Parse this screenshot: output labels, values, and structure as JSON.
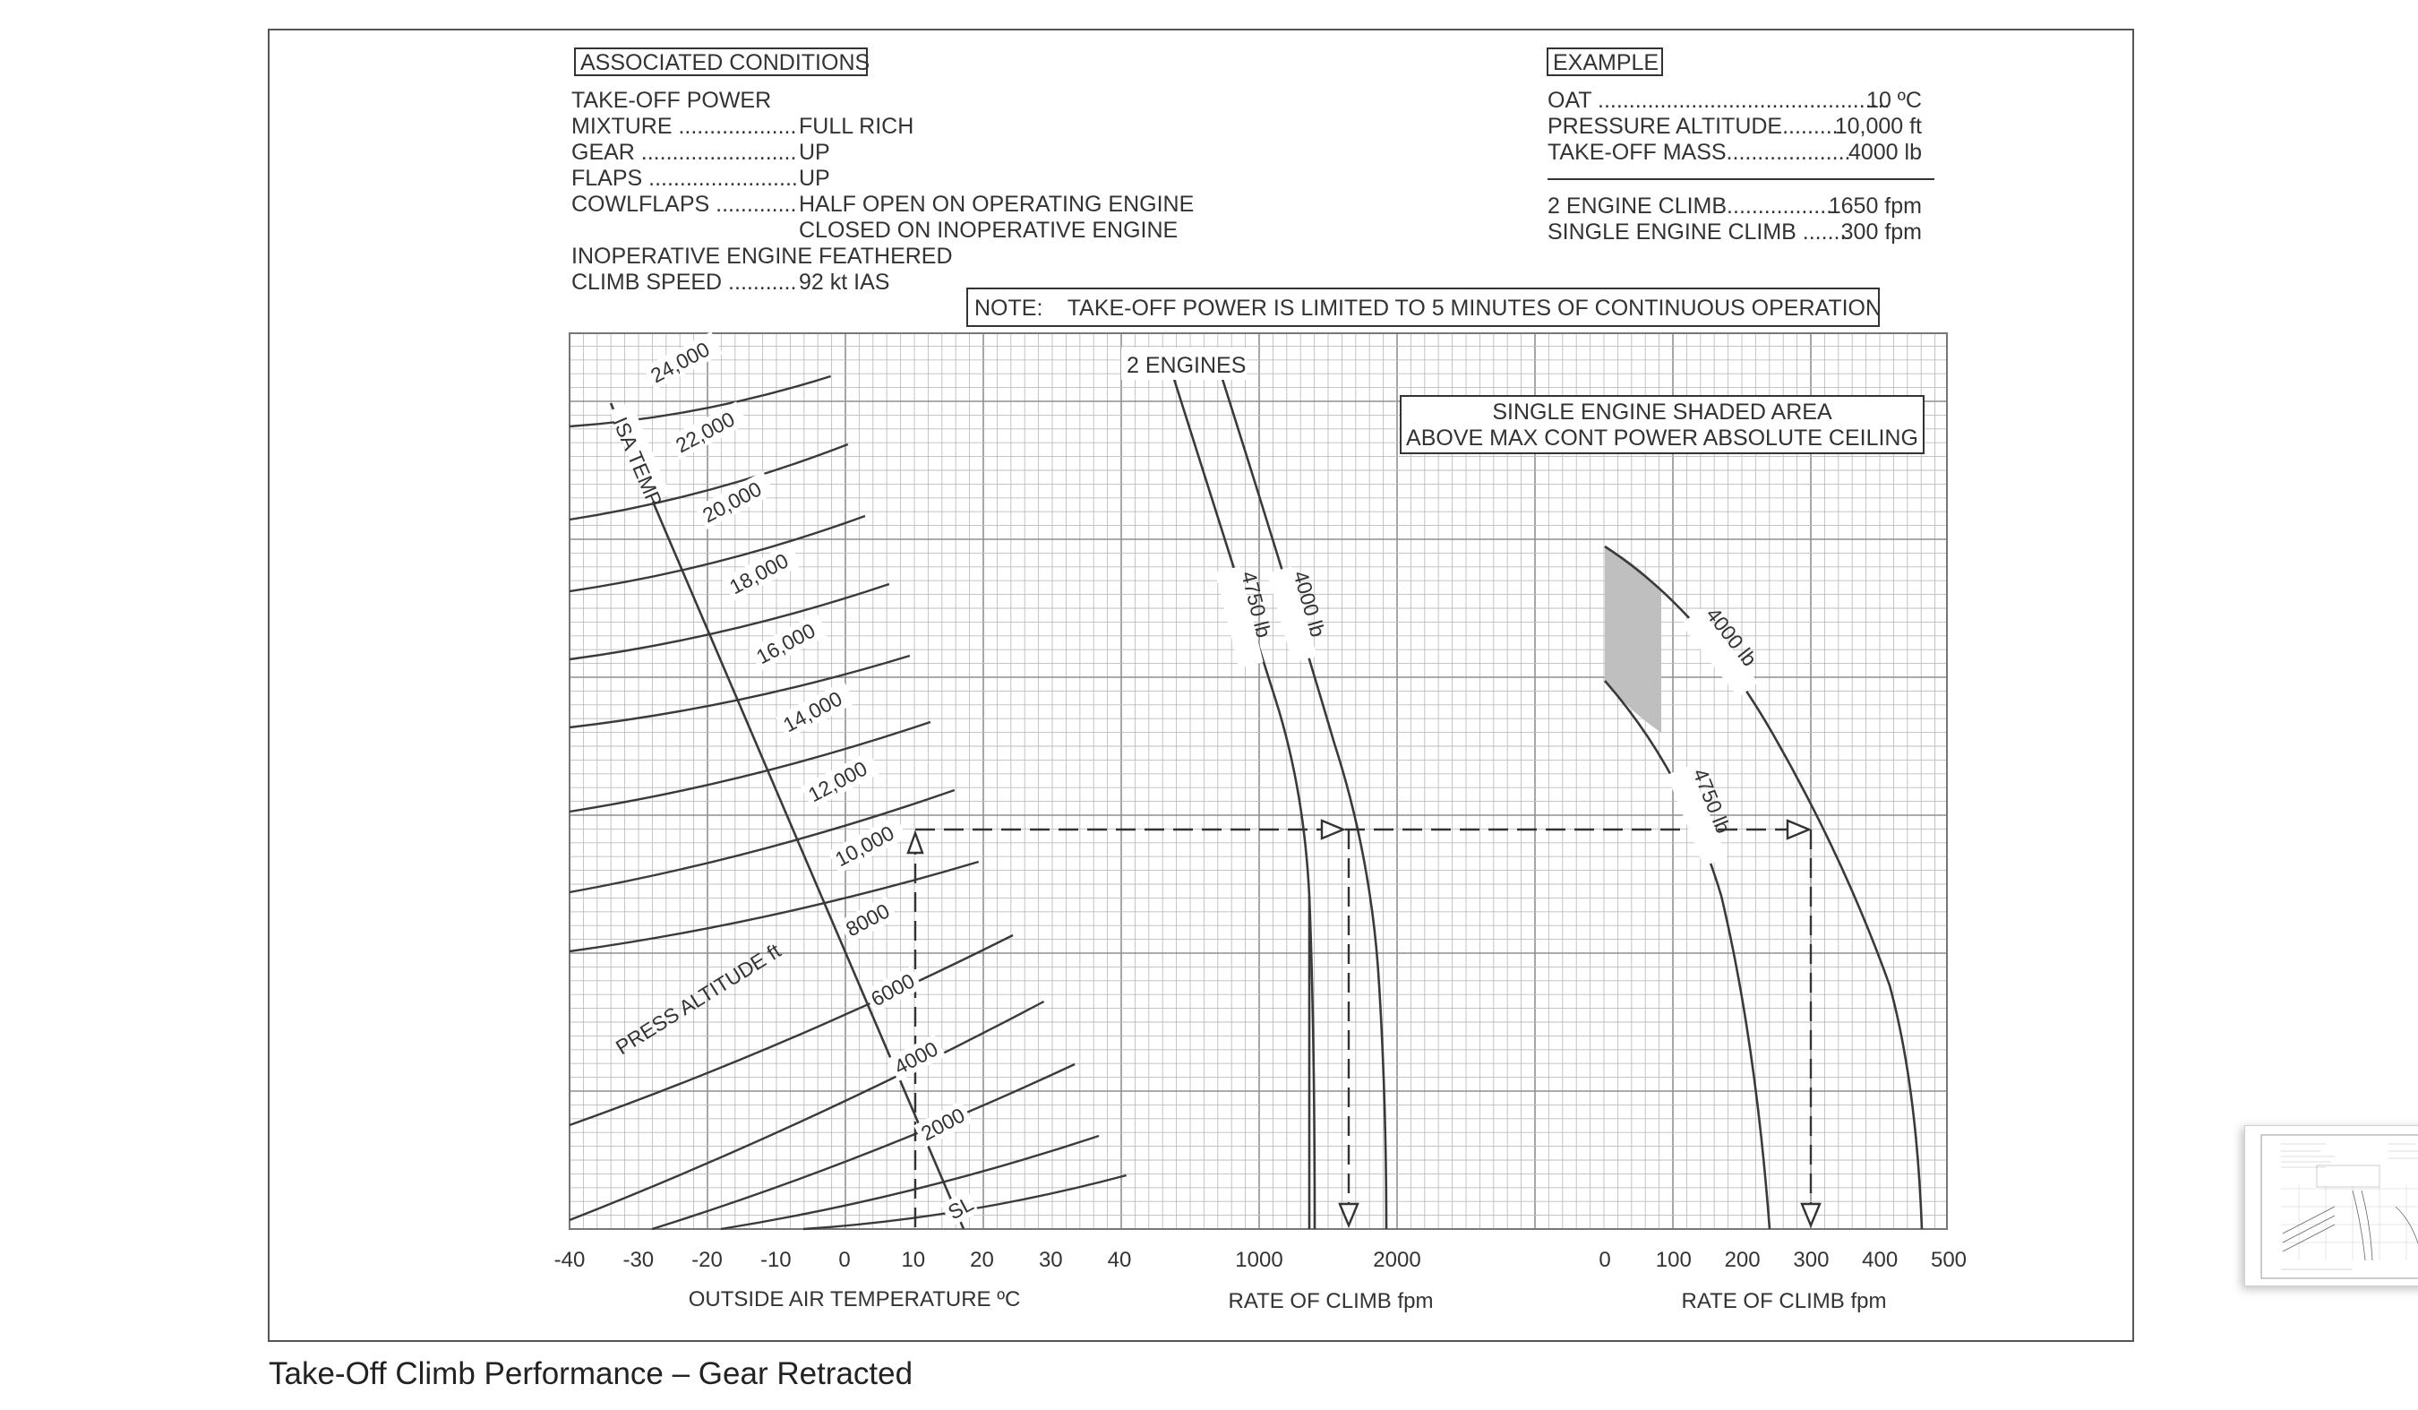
{
  "caption": "Take-Off Climb Performance – Gear Retracted",
  "panel": {
    "associated_conditions_title": "ASSOCIATED CONDITIONS",
    "conditions": [
      {
        "label": "TAKE-OFF POWER",
        "value": ""
      },
      {
        "label": "MIXTURE ...................",
        "value": "FULL RICH"
      },
      {
        "label": "GEAR .........................",
        "value": "UP"
      },
      {
        "label": "FLAPS ........................",
        "value": "UP"
      },
      {
        "label": "COWLFLAPS .............",
        "value": "HALF OPEN ON OPERATING ENGINE"
      },
      {
        "label": "",
        "value": "CLOSED ON INOPERATIVE ENGINE"
      },
      {
        "label": "INOPERATIVE ENGINE FEATHERED",
        "value": ""
      },
      {
        "label": "CLIMB SPEED ...........",
        "value": "92 kt IAS"
      }
    ],
    "example_title": "EXAMPLE",
    "example": [
      {
        "label": "OAT ...............................................",
        "value": "10 ºC"
      },
      {
        "label": "PRESSURE ALTITUDE.........",
        "value": "10,000 ft"
      },
      {
        "label": "TAKE-OFF MASS....................",
        "value": "4000 lb"
      },
      {
        "label": "2 ENGINE CLIMB.................",
        "value": "1650 fpm"
      },
      {
        "label": "SINGLE ENGINE CLIMB .......",
        "value": "300 fpm"
      }
    ],
    "note": "NOTE:    TAKE-OFF POWER IS LIMITED TO 5 MINUTES OF CONTINUOUS OPERATION",
    "two_engines_label": "2 ENGINES",
    "single_engine_box": [
      "SINGLE ENGINE SHADED AREA",
      "ABOVE MAX CONT POWER ABSOLUTE CEILING"
    ],
    "isa_temp_label": "ISA TEMP",
    "press_alt_label": "PRESS ALTITUDE  ft",
    "sl_label": "SL"
  },
  "chart_data": [
    {
      "type": "line",
      "id": "oat-altitude",
      "xlabel": "OUTSIDE AIR TEMPERATURE  ºC",
      "xticks": [
        "-40",
        "-30",
        "-20",
        "-10",
        "0",
        "10",
        "20",
        "30",
        "40"
      ],
      "xlim": [
        -40,
        40
      ],
      "series_label_text": [
        "24,000",
        "22,000",
        "20,000",
        "18,000",
        "16,000",
        "14,000",
        "12,000",
        "10,000",
        "8000",
        "6000",
        "4000",
        "2000",
        "SL"
      ],
      "pressure_altitudes_ft": [
        24000,
        22000,
        20000,
        18000,
        16000,
        14000,
        12000,
        10000,
        8000,
        6000,
        4000,
        2000,
        0
      ]
    },
    {
      "type": "line",
      "id": "two-engine-rate-of-climb",
      "xlabel": "RATE OF CLIMB  fpm",
      "xticks": [
        "1000",
        "2000"
      ],
      "xlim": [
        500,
        2500
      ],
      "series": [
        {
          "name": "4750 lb"
        },
        {
          "name": "4000 lb"
        }
      ],
      "example_result_fpm": 1650
    },
    {
      "type": "line",
      "id": "single-engine-rate-of-climb",
      "xlabel": "RATE OF CLIMB  fpm",
      "xticks": [
        "0",
        "100",
        "200",
        "300",
        "400",
        "500"
      ],
      "xlim": [
        0,
        500
      ],
      "series": [
        {
          "name": "4000 lb"
        },
        {
          "name": "4750 lb"
        }
      ],
      "example_result_fpm": 300,
      "shaded_area": "above max cont power absolute ceiling"
    }
  ],
  "colors": {
    "ink": "#3a3a3a",
    "grid_minor": "#bdbdbd",
    "grid_major": "#8f8f8f",
    "shade": "#bfbfbf"
  }
}
